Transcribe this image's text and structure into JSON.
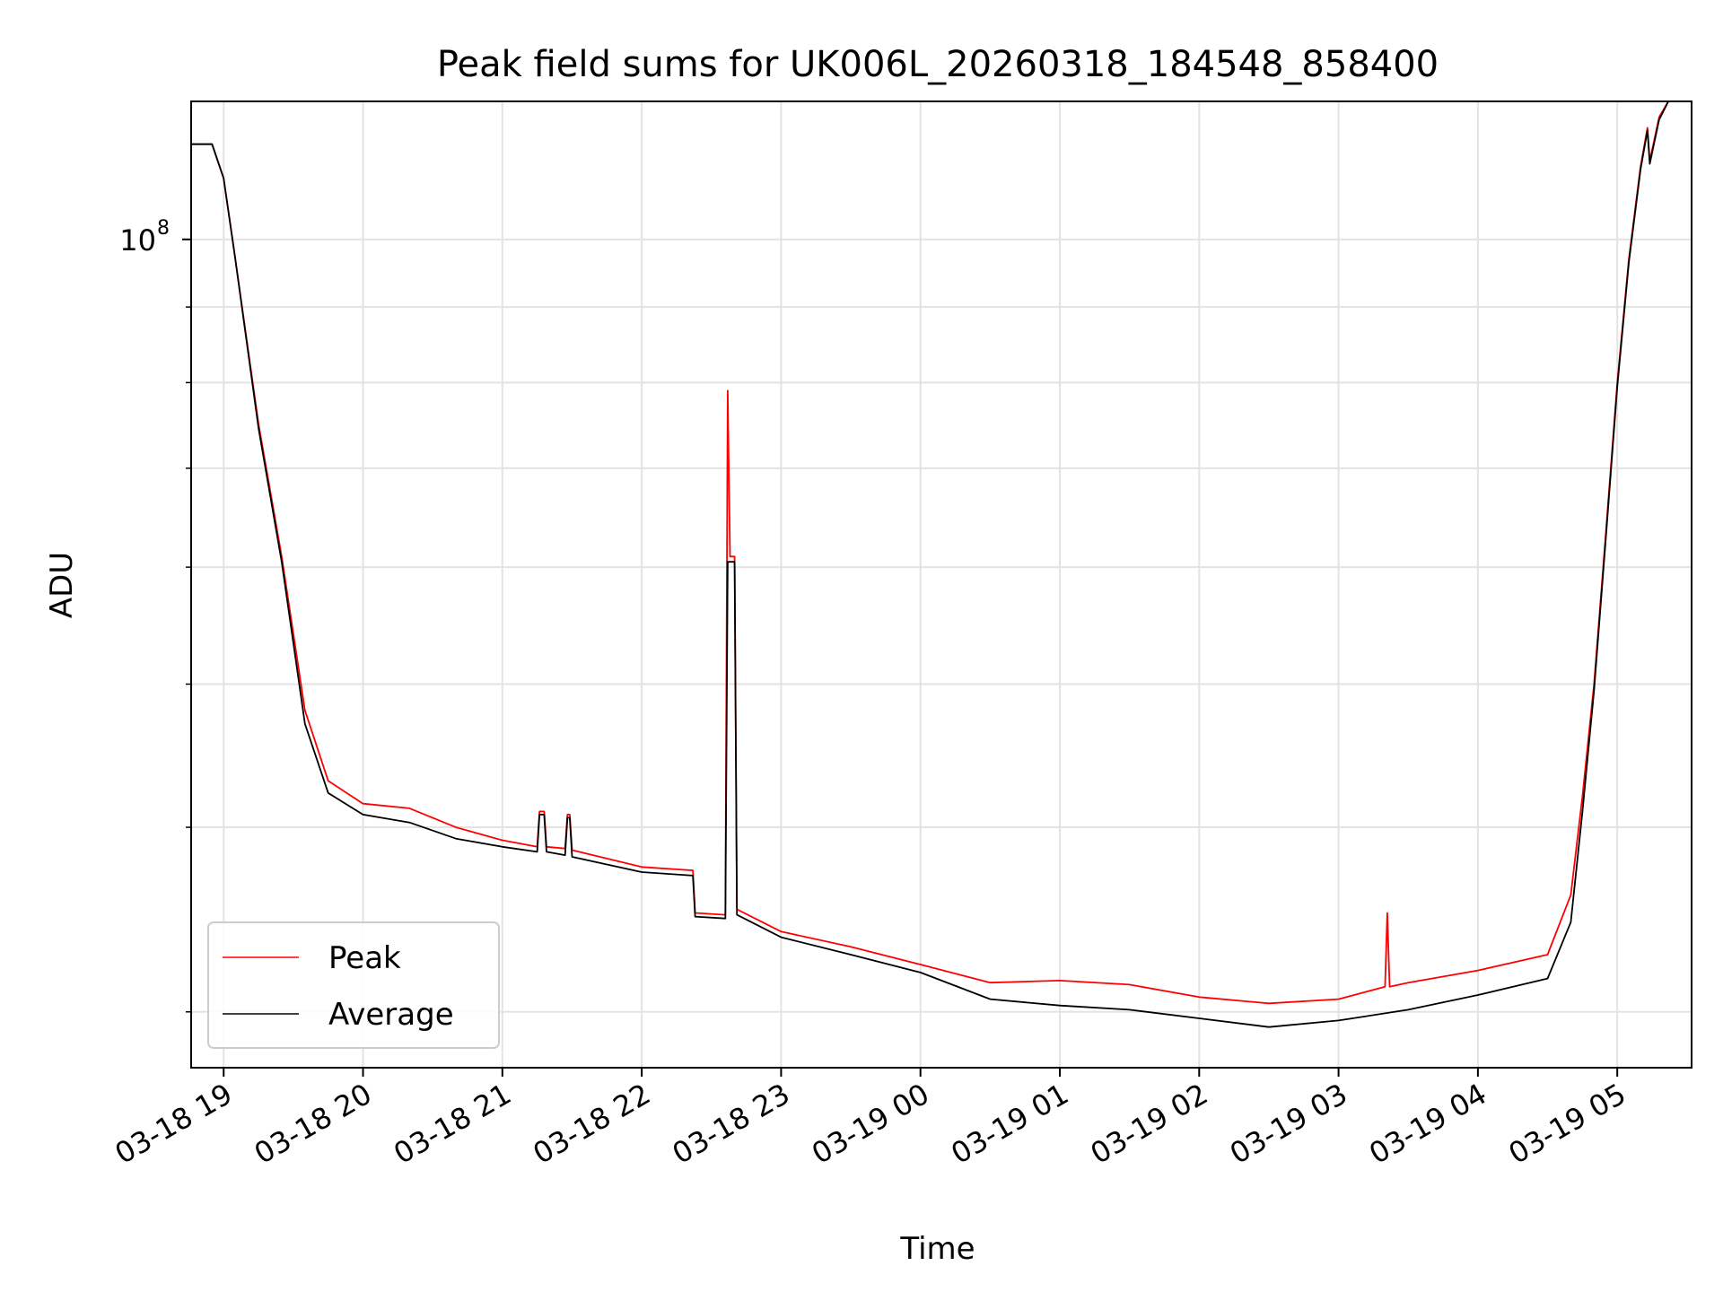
{
  "chart_data": {
    "type": "line",
    "title": "Peak field sums for UK006L_20260318_184548_858400",
    "xlabel": "Time",
    "ylabel": "ADU",
    "yscale": "log",
    "grid": true,
    "legend_position": "lower-left",
    "x_range": [
      "2026-03-18 18:46",
      "2026-03-19 05:32"
    ],
    "y_range": [
      27500000,
      124000000
    ],
    "x_ticks": [
      {
        "time": "2026-03-18 19:00",
        "label": "03-18 19"
      },
      {
        "time": "2026-03-18 20:00",
        "label": "03-18 20"
      },
      {
        "time": "2026-03-18 21:00",
        "label": "03-18 21"
      },
      {
        "time": "2026-03-18 22:00",
        "label": "03-18 22"
      },
      {
        "time": "2026-03-18 23:00",
        "label": "03-18 23"
      },
      {
        "time": "2026-03-19 00:00",
        "label": "03-19 00"
      },
      {
        "time": "2026-03-19 01:00",
        "label": "03-19 01"
      },
      {
        "time": "2026-03-19 02:00",
        "label": "03-19 02"
      },
      {
        "time": "2026-03-19 03:00",
        "label": "03-19 03"
      },
      {
        "time": "2026-03-19 04:00",
        "label": "03-19 04"
      },
      {
        "time": "2026-03-19 05:00",
        "label": "03-19 05"
      }
    ],
    "y_major_ticks": [
      {
        "value": 100000000,
        "label_base": "10",
        "label_exp": "8"
      }
    ],
    "y_minor_ticks": [
      30000000,
      40000000,
      50000000,
      60000000,
      70000000,
      80000000,
      90000000,
      200000000
    ],
    "series": [
      {
        "name": "Peak",
        "color": "#ff0000",
        "points": [
          [
            "2026-03-18 18:46",
            116000000
          ],
          [
            "2026-03-18 18:55",
            116000000
          ],
          [
            "2026-03-18 19:00",
            110000000
          ],
          [
            "2026-03-18 19:05",
            97000000
          ],
          [
            "2026-03-18 19:15",
            75000000
          ],
          [
            "2026-03-18 19:25",
            61000000
          ],
          [
            "2026-03-18 19:35",
            48000000
          ],
          [
            "2026-03-18 19:45",
            43000000
          ],
          [
            "2026-03-18 20:00",
            41500000
          ],
          [
            "2026-03-18 20:20",
            41200000
          ],
          [
            "2026-03-18 20:40",
            40000000
          ],
          [
            "2026-03-18 21:00",
            39200000
          ],
          [
            "2026-03-18 21:15",
            38800000
          ],
          [
            "2026-03-18 21:16",
            41000000
          ],
          [
            "2026-03-18 21:18",
            41000000
          ],
          [
            "2026-03-18 21:19",
            38800000
          ],
          [
            "2026-03-18 21:27",
            38700000
          ],
          [
            "2026-03-18 21:28",
            40800000
          ],
          [
            "2026-03-18 21:29",
            40800000
          ],
          [
            "2026-03-18 21:30",
            38600000
          ],
          [
            "2026-03-18 22:00",
            37600000
          ],
          [
            "2026-03-18 22:22",
            37400000
          ],
          [
            "2026-03-18 22:23",
            35000000
          ],
          [
            "2026-03-18 22:36",
            34900000
          ],
          [
            "2026-03-18 22:37",
            79000000
          ],
          [
            "2026-03-18 22:38",
            61000000
          ],
          [
            "2026-03-18 22:40",
            61000000
          ],
          [
            "2026-03-18 22:41",
            35200000
          ],
          [
            "2026-03-18 23:00",
            34000000
          ],
          [
            "2026-03-18 23:30",
            33200000
          ],
          [
            "2026-03-19 00:00",
            32300000
          ],
          [
            "2026-03-19 00:30",
            31400000
          ],
          [
            "2026-03-19 01:00",
            31500000
          ],
          [
            "2026-03-19 01:30",
            31300000
          ],
          [
            "2026-03-19 02:00",
            30700000
          ],
          [
            "2026-03-19 02:30",
            30400000
          ],
          [
            "2026-03-19 03:00",
            30600000
          ],
          [
            "2026-03-19 03:20",
            31200000
          ],
          [
            "2026-03-19 03:21",
            35000000
          ],
          [
            "2026-03-19 03:22",
            31200000
          ],
          [
            "2026-03-19 03:30",
            31400000
          ],
          [
            "2026-03-19 04:00",
            32000000
          ],
          [
            "2026-03-19 04:30",
            32800000
          ],
          [
            "2026-03-19 04:40",
            36000000
          ],
          [
            "2026-03-19 04:45",
            42000000
          ],
          [
            "2026-03-19 04:50",
            50000000
          ],
          [
            "2026-03-19 04:55",
            63000000
          ],
          [
            "2026-03-19 05:00",
            80000000
          ],
          [
            "2026-03-19 05:05",
            97000000
          ],
          [
            "2026-03-19 05:10",
            112000000
          ],
          [
            "2026-03-19 05:13",
            119000000
          ],
          [
            "2026-03-19 05:14",
            113000000
          ],
          [
            "2026-03-19 05:18",
            121000000
          ],
          [
            "2026-03-19 05:22",
            124000000
          ]
        ]
      },
      {
        "name": "Average",
        "color": "#000000",
        "points": [
          [
            "2026-03-18 18:46",
            116000000
          ],
          [
            "2026-03-18 18:55",
            116000000
          ],
          [
            "2026-03-18 19:00",
            110000000
          ],
          [
            "2026-03-18 19:05",
            97000000
          ],
          [
            "2026-03-18 19:15",
            74500000
          ],
          [
            "2026-03-18 19:25",
            60500000
          ],
          [
            "2026-03-18 19:35",
            47000000
          ],
          [
            "2026-03-18 19:45",
            42200000
          ],
          [
            "2026-03-18 20:00",
            40800000
          ],
          [
            "2026-03-18 20:20",
            40300000
          ],
          [
            "2026-03-18 20:40",
            39300000
          ],
          [
            "2026-03-18 21:00",
            38800000
          ],
          [
            "2026-03-18 21:15",
            38500000
          ],
          [
            "2026-03-18 21:16",
            40800000
          ],
          [
            "2026-03-18 21:18",
            40800000
          ],
          [
            "2026-03-18 21:19",
            38500000
          ],
          [
            "2026-03-18 21:27",
            38300000
          ],
          [
            "2026-03-18 21:28",
            40600000
          ],
          [
            "2026-03-18 21:29",
            40600000
          ],
          [
            "2026-03-18 21:30",
            38200000
          ],
          [
            "2026-03-18 22:00",
            37300000
          ],
          [
            "2026-03-18 22:22",
            37100000
          ],
          [
            "2026-03-18 22:23",
            34800000
          ],
          [
            "2026-03-18 22:36",
            34700000
          ],
          [
            "2026-03-18 22:37",
            60500000
          ],
          [
            "2026-03-18 22:40",
            60500000
          ],
          [
            "2026-03-18 22:41",
            34900000
          ],
          [
            "2026-03-18 23:00",
            33700000
          ],
          [
            "2026-03-18 23:30",
            32800000
          ],
          [
            "2026-03-19 00:00",
            31900000
          ],
          [
            "2026-03-19 00:30",
            30600000
          ],
          [
            "2026-03-19 01:00",
            30300000
          ],
          [
            "2026-03-19 01:30",
            30100000
          ],
          [
            "2026-03-19 02:00",
            29700000
          ],
          [
            "2026-03-19 02:30",
            29300000
          ],
          [
            "2026-03-19 03:00",
            29600000
          ],
          [
            "2026-03-19 03:30",
            30100000
          ],
          [
            "2026-03-19 04:00",
            30800000
          ],
          [
            "2026-03-19 04:30",
            31600000
          ],
          [
            "2026-03-19 04:40",
            34500000
          ],
          [
            "2026-03-19 04:45",
            41000000
          ],
          [
            "2026-03-19 04:50",
            49500000
          ],
          [
            "2026-03-19 04:55",
            62500000
          ],
          [
            "2026-03-19 05:00",
            79500000
          ],
          [
            "2026-03-19 05:05",
            96500000
          ],
          [
            "2026-03-19 05:10",
            111500000
          ],
          [
            "2026-03-19 05:13",
            118500000
          ],
          [
            "2026-03-19 05:14",
            112500000
          ],
          [
            "2026-03-19 05:18",
            120500000
          ],
          [
            "2026-03-19 05:22",
            124000000
          ]
        ]
      }
    ]
  }
}
